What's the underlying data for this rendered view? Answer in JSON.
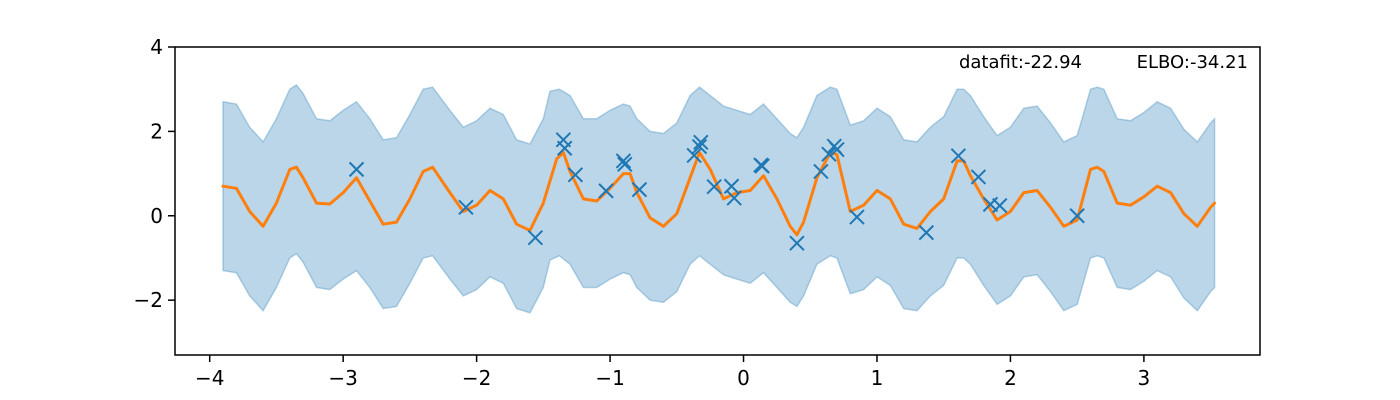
{
  "chart_data": {
    "type": "line",
    "title": "",
    "xlabel": "",
    "ylabel": "",
    "xlim": [
      -4.26,
      3.87
    ],
    "ylim": [
      -3.3,
      4.0
    ],
    "x_ticks": [
      -4,
      -3,
      -2,
      -1,
      0,
      1,
      2,
      3
    ],
    "x_tick_labels": [
      "−4",
      "−3",
      "−2",
      "−1",
      "0",
      "1",
      "2",
      "3"
    ],
    "y_ticks": [
      4,
      2,
      0,
      -2
    ],
    "y_tick_labels": [
      "4",
      "2",
      "0",
      "−2"
    ],
    "annotations": {
      "datafit": "datafit:-22.94",
      "elbo": "ELBO:-34.21"
    },
    "colors": {
      "mean": "#ff7f0e",
      "band": "#1f77b4",
      "observations": "#1f77b4"
    },
    "observations": {
      "marker": "x",
      "x": [
        -2.9,
        -2.08,
        -1.56,
        -1.35,
        -1.34,
        -1.26,
        -1.03,
        -0.9,
        -0.89,
        -0.78,
        -0.37,
        -0.33,
        -0.32,
        -0.22,
        -0.09,
        -0.07,
        0.13,
        0.14,
        0.4,
        0.58,
        0.64,
        0.68,
        0.7,
        0.85,
        1.37,
        1.61,
        1.76,
        1.85,
        1.92,
        2.5
      ],
      "y": [
        1.1,
        0.2,
        -0.52,
        1.8,
        1.6,
        0.97,
        0.59,
        1.3,
        1.22,
        0.62,
        1.43,
        1.64,
        1.74,
        0.69,
        0.7,
        0.42,
        1.2,
        1.18,
        -0.65,
        1.05,
        1.46,
        1.65,
        1.57,
        -0.03,
        -0.4,
        1.42,
        0.92,
        0.27,
        0.24,
        0.0
      ]
    },
    "series": [
      {
        "kind": "mean",
        "x": [
          -3.9,
          -3.8,
          -3.7,
          -3.6,
          -3.5,
          -3.4,
          -3.35,
          -3.3,
          -3.2,
          -3.1,
          -3.0,
          -2.9,
          -2.8,
          -2.7,
          -2.6,
          -2.5,
          -2.4,
          -2.33,
          -2.2,
          -2.1,
          -2.0,
          -1.9,
          -1.8,
          -1.7,
          -1.6,
          -1.5,
          -1.4,
          -1.35,
          -1.3,
          -1.2,
          -1.1,
          -1.0,
          -0.9,
          -0.85,
          -0.8,
          -0.7,
          -0.6,
          -0.5,
          -0.4,
          -0.33,
          -0.25,
          -0.15,
          -0.05,
          0.05,
          0.15,
          0.25,
          0.35,
          0.4,
          0.45,
          0.55,
          0.65,
          0.7,
          0.8,
          0.9,
          1.0,
          1.1,
          1.2,
          1.3,
          1.4,
          1.5,
          1.6,
          1.65,
          1.7,
          1.8,
          1.9,
          2.0,
          2.1,
          2.2,
          2.3,
          2.4,
          2.5,
          2.6,
          2.65,
          2.7,
          2.8,
          2.9,
          3.0,
          3.1,
          3.2,
          3.3,
          3.4,
          3.5,
          3.53
        ],
        "y": [
          0.7,
          0.65,
          0.1,
          -0.25,
          0.3,
          1.1,
          1.15,
          0.9,
          0.3,
          0.28,
          0.55,
          0.9,
          0.35,
          -0.2,
          -0.15,
          0.4,
          1.05,
          1.15,
          0.55,
          0.1,
          0.25,
          0.6,
          0.4,
          -0.2,
          -0.35,
          0.3,
          1.35,
          1.5,
          1.05,
          0.4,
          0.35,
          0.65,
          1.0,
          1.0,
          0.55,
          -0.05,
          -0.25,
          0.05,
          0.9,
          1.5,
          1.1,
          0.4,
          0.55,
          0.6,
          0.95,
          0.4,
          -0.25,
          -0.45,
          -0.15,
          0.9,
          1.5,
          1.45,
          0.1,
          0.25,
          0.6,
          0.4,
          -0.2,
          -0.3,
          0.1,
          0.4,
          1.3,
          1.3,
          0.95,
          0.4,
          -0.1,
          0.1,
          0.55,
          0.6,
          0.2,
          -0.25,
          -0.1,
          1.1,
          1.15,
          1.05,
          0.3,
          0.25,
          0.45,
          0.7,
          0.55,
          0.05,
          -0.25,
          0.2,
          0.3
        ]
      },
      {
        "kind": "upper",
        "x": [
          -3.9,
          -3.8,
          -3.7,
          -3.6,
          -3.5,
          -3.4,
          -3.35,
          -3.3,
          -3.2,
          -3.1,
          -3.0,
          -2.9,
          -2.8,
          -2.7,
          -2.6,
          -2.5,
          -2.4,
          -2.33,
          -2.2,
          -2.1,
          -2.0,
          -1.9,
          -1.8,
          -1.7,
          -1.6,
          -1.5,
          -1.45,
          -1.38,
          -1.3,
          -1.2,
          -1.1,
          -1.0,
          -0.9,
          -0.85,
          -0.8,
          -0.7,
          -0.6,
          -0.5,
          -0.4,
          -0.33,
          -0.25,
          -0.15,
          -0.05,
          0.05,
          0.15,
          0.25,
          0.35,
          0.4,
          0.45,
          0.55,
          0.65,
          0.7,
          0.8,
          0.9,
          1.0,
          1.1,
          1.2,
          1.3,
          1.4,
          1.5,
          1.6,
          1.65,
          1.7,
          1.8,
          1.9,
          2.0,
          2.1,
          2.2,
          2.3,
          2.4,
          2.5,
          2.6,
          2.65,
          2.7,
          2.8,
          2.9,
          3.0,
          3.1,
          3.2,
          3.3,
          3.4,
          3.5,
          3.53
        ],
        "y": [
          2.7,
          2.65,
          2.1,
          1.75,
          2.3,
          3.0,
          3.1,
          2.9,
          2.3,
          2.25,
          2.5,
          2.7,
          2.3,
          1.8,
          1.85,
          2.4,
          3.0,
          3.05,
          2.5,
          2.1,
          2.25,
          2.55,
          2.4,
          1.8,
          1.7,
          2.3,
          2.95,
          3.0,
          2.85,
          2.3,
          2.3,
          2.5,
          2.65,
          2.6,
          2.3,
          2.0,
          1.95,
          2.2,
          2.85,
          3.05,
          2.85,
          2.6,
          2.5,
          2.4,
          2.65,
          2.3,
          1.95,
          1.85,
          2.1,
          2.85,
          3.05,
          3.0,
          2.15,
          2.25,
          2.55,
          2.35,
          1.8,
          1.75,
          2.1,
          2.35,
          3.0,
          3.0,
          2.85,
          2.35,
          1.9,
          2.1,
          2.55,
          2.6,
          2.2,
          1.75,
          1.9,
          3.0,
          3.05,
          3.0,
          2.3,
          2.25,
          2.45,
          2.7,
          2.55,
          2.05,
          1.75,
          2.2,
          2.3
        ]
      },
      {
        "kind": "lower",
        "x": [
          -3.9,
          -3.8,
          -3.7,
          -3.6,
          -3.5,
          -3.4,
          -3.35,
          -3.3,
          -3.2,
          -3.1,
          -3.0,
          -2.9,
          -2.8,
          -2.7,
          -2.6,
          -2.5,
          -2.4,
          -2.33,
          -2.2,
          -2.1,
          -2.0,
          -1.9,
          -1.8,
          -1.7,
          -1.6,
          -1.5,
          -1.45,
          -1.38,
          -1.3,
          -1.2,
          -1.1,
          -1.0,
          -0.9,
          -0.85,
          -0.8,
          -0.7,
          -0.6,
          -0.5,
          -0.4,
          -0.33,
          -0.25,
          -0.15,
          -0.05,
          0.05,
          0.15,
          0.25,
          0.35,
          0.4,
          0.45,
          0.55,
          0.65,
          0.7,
          0.8,
          0.9,
          1.0,
          1.1,
          1.2,
          1.3,
          1.4,
          1.5,
          1.6,
          1.65,
          1.7,
          1.8,
          1.9,
          2.0,
          2.1,
          2.2,
          2.3,
          2.4,
          2.5,
          2.6,
          2.65,
          2.7,
          2.8,
          2.9,
          3.0,
          3.1,
          3.2,
          3.3,
          3.4,
          3.5,
          3.53
        ],
        "y": [
          -1.3,
          -1.35,
          -1.9,
          -2.25,
          -1.7,
          -1.0,
          -0.9,
          -1.1,
          -1.7,
          -1.75,
          -1.5,
          -1.3,
          -1.7,
          -2.2,
          -2.15,
          -1.6,
          -1.0,
          -0.95,
          -1.5,
          -1.9,
          -1.75,
          -1.45,
          -1.6,
          -2.2,
          -2.3,
          -1.7,
          -1.05,
          -0.95,
          -1.15,
          -1.7,
          -1.7,
          -1.5,
          -1.35,
          -1.4,
          -1.7,
          -2.0,
          -2.05,
          -1.8,
          -1.15,
          -0.95,
          -1.15,
          -1.4,
          -1.5,
          -1.6,
          -1.35,
          -1.7,
          -2.05,
          -2.15,
          -1.9,
          -1.15,
          -0.95,
          -1.0,
          -1.85,
          -1.75,
          -1.45,
          -1.65,
          -2.2,
          -2.25,
          -1.9,
          -1.65,
          -1.0,
          -1.0,
          -1.15,
          -1.65,
          -2.1,
          -1.9,
          -1.45,
          -1.4,
          -1.8,
          -2.25,
          -2.1,
          -1.0,
          -0.95,
          -1.0,
          -1.7,
          -1.75,
          -1.55,
          -1.3,
          -1.45,
          -1.95,
          -2.25,
          -1.8,
          -1.7
        ]
      }
    ]
  }
}
